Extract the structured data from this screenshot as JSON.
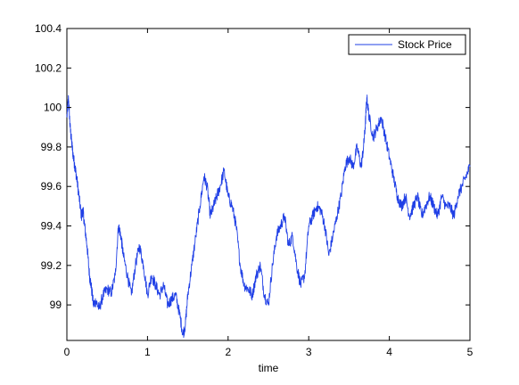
{
  "chart_data": {
    "type": "line",
    "title": "",
    "xlabel": "time",
    "ylabel": "",
    "xlim": [
      0,
      5
    ],
    "ylim": [
      98.82,
      100.4
    ],
    "xticks": [
      0,
      1,
      2,
      3,
      4,
      5
    ],
    "yticks": [
      99,
      99.2,
      99.4,
      99.6,
      99.8,
      100,
      100.2,
      100.4
    ],
    "grid": false,
    "legend_position": "top-right",
    "series": [
      {
        "name": "Stock Price",
        "color": "#1f3fe6",
        "x": [
          0,
          0.02,
          0.04,
          0.06,
          0.08,
          0.1,
          0.12,
          0.15,
          0.18,
          0.2,
          0.22,
          0.25,
          0.28,
          0.3,
          0.33,
          0.36,
          0.4,
          0.45,
          0.5,
          0.55,
          0.6,
          0.64,
          0.67,
          0.7,
          0.75,
          0.8,
          0.85,
          0.9,
          0.95,
          1.0,
          1.05,
          1.1,
          1.15,
          1.2,
          1.25,
          1.3,
          1.35,
          1.4,
          1.44,
          1.47,
          1.5,
          1.55,
          1.6,
          1.65,
          1.7,
          1.74,
          1.78,
          1.82,
          1.86,
          1.9,
          1.95,
          2.0,
          2.05,
          2.1,
          2.15,
          2.2,
          2.25,
          2.3,
          2.35,
          2.4,
          2.45,
          2.5,
          2.55,
          2.6,
          2.65,
          2.7,
          2.75,
          2.8,
          2.85,
          2.9,
          2.95,
          3.0,
          3.05,
          3.1,
          3.15,
          3.2,
          3.25,
          3.3,
          3.35,
          3.4,
          3.45,
          3.5,
          3.55,
          3.6,
          3.65,
          3.68,
          3.7,
          3.72,
          3.75,
          3.8,
          3.85,
          3.9,
          3.95,
          4.0,
          4.05,
          4.1,
          4.15,
          4.2,
          4.25,
          4.3,
          4.35,
          4.4,
          4.45,
          4.5,
          4.55,
          4.6,
          4.65,
          4.7,
          4.75,
          4.8,
          4.85,
          4.9,
          4.95,
          5.0
        ],
        "y": [
          99.95,
          100.05,
          99.9,
          99.82,
          99.75,
          99.7,
          99.65,
          99.55,
          99.45,
          99.48,
          99.4,
          99.3,
          99.15,
          99.1,
          99.0,
          99.02,
          98.98,
          99.05,
          99.08,
          99.06,
          99.15,
          99.4,
          99.35,
          99.25,
          99.15,
          99.05,
          99.2,
          99.3,
          99.2,
          99.05,
          99.15,
          99.1,
          99.05,
          99.1,
          99.0,
          99.03,
          99.05,
          98.95,
          98.85,
          98.9,
          99.05,
          99.2,
          99.35,
          99.5,
          99.65,
          99.6,
          99.45,
          99.5,
          99.55,
          99.6,
          99.68,
          99.55,
          99.5,
          99.4,
          99.2,
          99.1,
          99.08,
          99.05,
          99.15,
          99.2,
          99.05,
          99.0,
          99.2,
          99.35,
          99.4,
          99.45,
          99.3,
          99.35,
          99.2,
          99.1,
          99.15,
          99.4,
          99.45,
          99.5,
          99.48,
          99.4,
          99.25,
          99.35,
          99.45,
          99.55,
          99.7,
          99.75,
          99.7,
          99.8,
          99.7,
          99.8,
          99.9,
          100.05,
          99.95,
          99.85,
          99.9,
          99.95,
          99.85,
          99.75,
          99.65,
          99.55,
          99.5,
          99.55,
          99.45,
          99.5,
          99.55,
          99.45,
          99.5,
          99.55,
          99.5,
          99.45,
          99.55,
          99.5,
          99.5,
          99.45,
          99.55,
          99.6,
          99.65,
          99.7
        ]
      }
    ]
  }
}
